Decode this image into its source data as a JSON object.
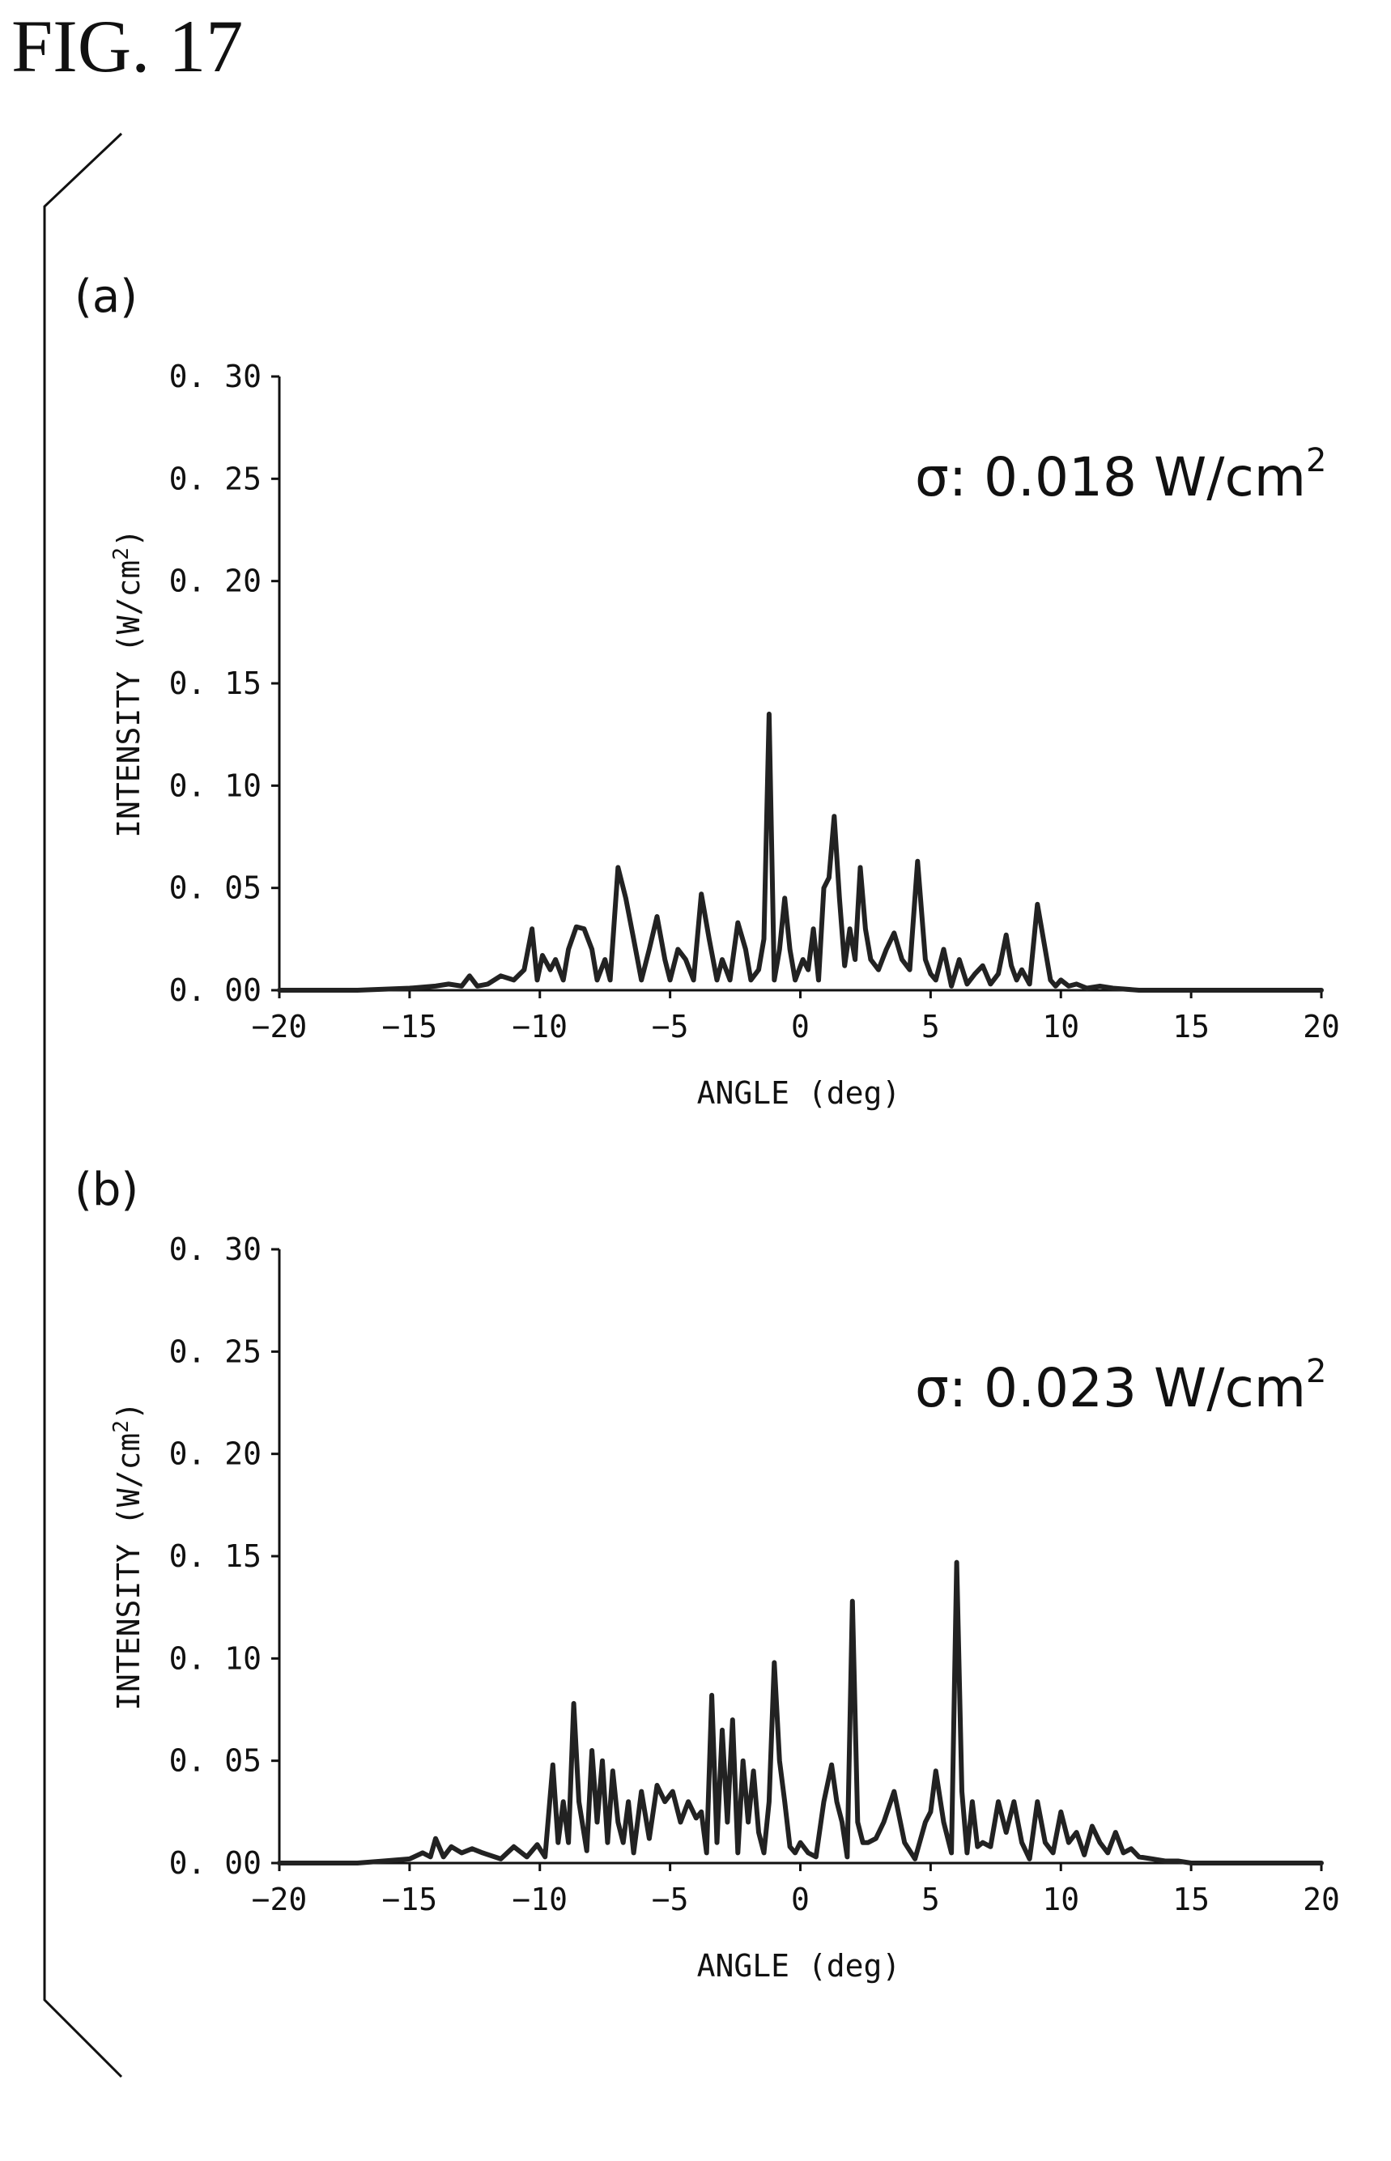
{
  "figure_title": "FIG.  17",
  "chart_data": [
    {
      "panel_label": "(a)",
      "type": "line",
      "xlabel": "ANGLE (deg)",
      "ylabel": "INTENSITY (W/cm",
      "ylabel_sup": "2",
      "ylabel_close": ")",
      "annotation": "σ: 0.018 W/cm",
      "annotation_sup": "2",
      "xlim": [
        -20,
        20
      ],
      "ylim": [
        0,
        0.3
      ],
      "xticks": [
        -20,
        -15,
        -10,
        -5,
        0,
        5,
        10,
        15,
        20
      ],
      "xtick_labels": [
        "−20",
        "−15",
        "−10",
        "−5",
        "0",
        "5",
        "10",
        "15",
        "20"
      ],
      "yticks": [
        0,
        0.05,
        0.1,
        0.15,
        0.2,
        0.25,
        0.3
      ],
      "ytick_labels": [
        "0. 00",
        "0. 05",
        "0. 10",
        "0. 15",
        "0. 20",
        "0. 25",
        "0. 30"
      ],
      "grid": false,
      "series": [
        {
          "x": [
            -20,
            -17,
            -15,
            -14,
            -13.5,
            -13,
            -12.7,
            -12.4,
            -12,
            -11.5,
            -11,
            -10.6,
            -10.3,
            -10.1,
            -9.9,
            -9.6,
            -9.4,
            -9.1,
            -8.9,
            -8.6,
            -8.3,
            -8.0,
            -7.8,
            -7.5,
            -7.3,
            -7.0,
            -6.7,
            -6.4,
            -6.1,
            -5.8,
            -5.5,
            -5.2,
            -5.0,
            -4.7,
            -4.4,
            -4.1,
            -3.8,
            -3.5,
            -3.2,
            -3.0,
            -2.7,
            -2.4,
            -2.1,
            -1.9,
            -1.6,
            -1.4,
            -1.2,
            -1.0,
            -0.8,
            -0.6,
            -0.4,
            -0.2,
            0.1,
            0.3,
            0.5,
            0.7,
            0.9,
            1.1,
            1.3,
            1.5,
            1.7,
            1.9,
            2.1,
            2.3,
            2.5,
            2.7,
            3.0,
            3.3,
            3.6,
            3.9,
            4.2,
            4.5,
            4.8,
            5.0,
            5.2,
            5.5,
            5.8,
            6.1,
            6.4,
            6.7,
            7.0,
            7.3,
            7.6,
            7.9,
            8.1,
            8.3,
            8.5,
            8.8,
            9.1,
            9.4,
            9.6,
            9.8,
            10.0,
            10.3,
            10.6,
            11.0,
            11.5,
            12.0,
            13.0,
            14.0,
            15.0,
            20.0
          ],
          "y": [
            0.0,
            0.0,
            0.001,
            0.002,
            0.003,
            0.002,
            0.007,
            0.002,
            0.003,
            0.007,
            0.005,
            0.01,
            0.03,
            0.005,
            0.017,
            0.01,
            0.015,
            0.005,
            0.02,
            0.031,
            0.03,
            0.02,
            0.005,
            0.015,
            0.005,
            0.06,
            0.045,
            0.025,
            0.005,
            0.02,
            0.036,
            0.015,
            0.005,
            0.02,
            0.015,
            0.005,
            0.047,
            0.025,
            0.005,
            0.015,
            0.005,
            0.033,
            0.02,
            0.005,
            0.01,
            0.025,
            0.135,
            0.005,
            0.02,
            0.045,
            0.02,
            0.005,
            0.015,
            0.01,
            0.03,
            0.005,
            0.05,
            0.055,
            0.085,
            0.045,
            0.012,
            0.03,
            0.015,
            0.06,
            0.03,
            0.015,
            0.01,
            0.02,
            0.028,
            0.015,
            0.01,
            0.063,
            0.015,
            0.008,
            0.005,
            0.02,
            0.002,
            0.015,
            0.003,
            0.008,
            0.012,
            0.003,
            0.008,
            0.027,
            0.012,
            0.005,
            0.01,
            0.003,
            0.042,
            0.02,
            0.005,
            0.002,
            0.005,
            0.002,
            0.003,
            0.001,
            0.002,
            0.001,
            0.0,
            0.0,
            0.0,
            0.0
          ]
        }
      ]
    },
    {
      "panel_label": "(b)",
      "type": "line",
      "xlabel": "ANGLE (deg)",
      "ylabel": "INTENSITY (W/cm",
      "ylabel_sup": "2",
      "ylabel_close": ")",
      "annotation": "σ: 0.023 W/cm",
      "annotation_sup": "2",
      "xlim": [
        -20,
        20
      ],
      "ylim": [
        0,
        0.3
      ],
      "xticks": [
        -20,
        -15,
        -10,
        -5,
        0,
        5,
        10,
        15,
        20
      ],
      "xtick_labels": [
        "−20",
        "−15",
        "−10",
        "−5",
        "0",
        "5",
        "10",
        "15",
        "20"
      ],
      "yticks": [
        0,
        0.05,
        0.1,
        0.15,
        0.2,
        0.25,
        0.3
      ],
      "ytick_labels": [
        "0. 00",
        "0. 05",
        "0. 10",
        "0. 15",
        "0. 20",
        "0. 25",
        "0. 30"
      ],
      "grid": false,
      "series": [
        {
          "x": [
            -20,
            -17,
            -16,
            -15,
            -14.5,
            -14.2,
            -14.0,
            -13.7,
            -13.4,
            -13.0,
            -12.6,
            -12.2,
            -11.5,
            -11.0,
            -10.5,
            -10.1,
            -9.8,
            -9.5,
            -9.3,
            -9.1,
            -8.9,
            -8.7,
            -8.5,
            -8.2,
            -8.0,
            -7.8,
            -7.6,
            -7.4,
            -7.2,
            -7.0,
            -6.8,
            -6.6,
            -6.4,
            -6.1,
            -5.8,
            -5.5,
            -5.2,
            -4.9,
            -4.6,
            -4.3,
            -4.0,
            -3.8,
            -3.6,
            -3.4,
            -3.2,
            -3.0,
            -2.8,
            -2.6,
            -2.4,
            -2.2,
            -2.0,
            -1.8,
            -1.6,
            -1.4,
            -1.2,
            -1.0,
            -0.8,
            -0.6,
            -0.4,
            -0.2,
            0.0,
            0.3,
            0.6,
            0.9,
            1.2,
            1.4,
            1.6,
            1.8,
            2.0,
            2.2,
            2.4,
            2.6,
            2.9,
            3.2,
            3.6,
            4.0,
            4.4,
            4.8,
            5.0,
            5.2,
            5.5,
            5.8,
            6.0,
            6.2,
            6.4,
            6.6,
            6.8,
            7.0,
            7.3,
            7.6,
            7.9,
            8.2,
            8.5,
            8.8,
            9.1,
            9.4,
            9.7,
            10.0,
            10.3,
            10.6,
            10.9,
            11.2,
            11.5,
            11.8,
            12.1,
            12.4,
            12.7,
            13.0,
            13.5,
            14.0,
            14.5,
            15.0,
            16.0,
            20.0
          ],
          "y": [
            0.0,
            0.0,
            0.001,
            0.002,
            0.005,
            0.003,
            0.012,
            0.003,
            0.008,
            0.005,
            0.007,
            0.005,
            0.002,
            0.008,
            0.003,
            0.009,
            0.003,
            0.048,
            0.01,
            0.03,
            0.01,
            0.078,
            0.03,
            0.006,
            0.055,
            0.02,
            0.05,
            0.01,
            0.045,
            0.02,
            0.01,
            0.03,
            0.005,
            0.035,
            0.012,
            0.038,
            0.03,
            0.035,
            0.02,
            0.03,
            0.022,
            0.025,
            0.005,
            0.082,
            0.01,
            0.065,
            0.02,
            0.07,
            0.005,
            0.05,
            0.02,
            0.045,
            0.015,
            0.005,
            0.03,
            0.098,
            0.05,
            0.03,
            0.008,
            0.005,
            0.01,
            0.005,
            0.003,
            0.03,
            0.048,
            0.03,
            0.02,
            0.003,
            0.128,
            0.02,
            0.01,
            0.01,
            0.012,
            0.02,
            0.035,
            0.01,
            0.002,
            0.02,
            0.025,
            0.045,
            0.02,
            0.005,
            0.147,
            0.035,
            0.005,
            0.03,
            0.008,
            0.01,
            0.008,
            0.03,
            0.015,
            0.03,
            0.01,
            0.002,
            0.03,
            0.01,
            0.005,
            0.025,
            0.01,
            0.015,
            0.004,
            0.018,
            0.01,
            0.005,
            0.015,
            0.005,
            0.007,
            0.003,
            0.002,
            0.001,
            0.001,
            0.0,
            0.0,
            0.0
          ]
        }
      ]
    }
  ]
}
